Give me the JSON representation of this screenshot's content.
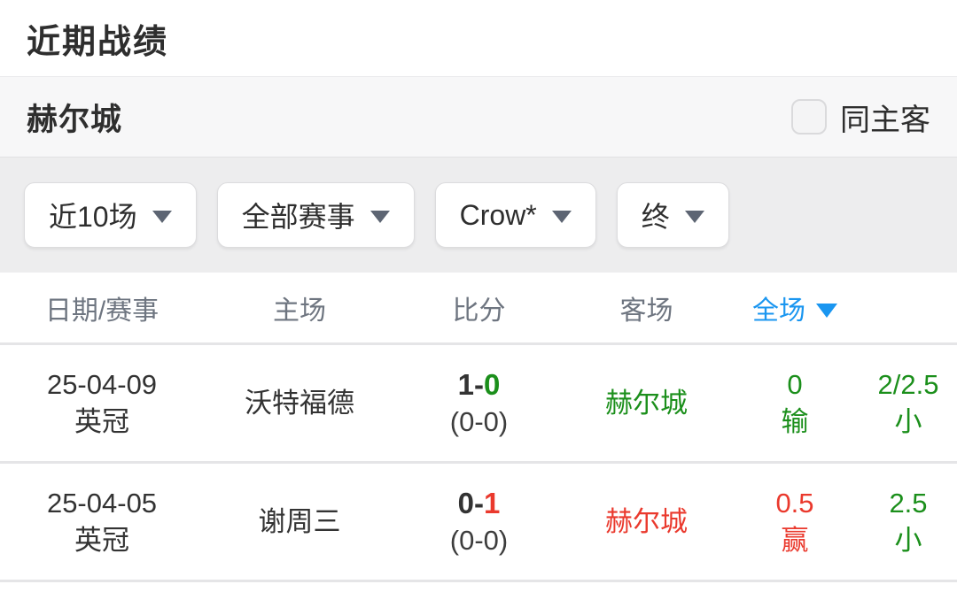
{
  "page": {
    "title": "近期战绩"
  },
  "team_bar": {
    "team_name": "赫尔城",
    "checkbox_label": "同主客",
    "checkbox_checked": false
  },
  "filters": [
    {
      "label": "近10场"
    },
    {
      "label": "全部赛事"
    },
    {
      "label": "Crow*"
    },
    {
      "label": "终"
    }
  ],
  "table": {
    "headers": [
      {
        "label": "日期/赛事"
      },
      {
        "label": "主场"
      },
      {
        "label": "比分"
      },
      {
        "label": "客场"
      },
      {
        "label": "全场",
        "sort": "desc"
      }
    ],
    "rows": [
      {
        "date": "25-04-09",
        "competition": "英冠",
        "home": "沃特福德",
        "home_color": "dark",
        "score": {
          "home": "1",
          "sep": "-",
          "away": "0",
          "home_color": "dark",
          "away_color": "green"
        },
        "half_score": "(0-0)",
        "away": "赫尔城",
        "away_color": "green",
        "handicap": {
          "value": "0",
          "result": "输",
          "color": "green"
        },
        "over_under": {
          "value": "2/2.5",
          "result": "小",
          "color": "green"
        }
      },
      {
        "date": "25-04-05",
        "competition": "英冠",
        "home": "谢周三",
        "home_color": "dark",
        "score": {
          "home": "0",
          "sep": "-",
          "away": "1",
          "home_color": "dark",
          "away_color": "red"
        },
        "half_score": "(0-0)",
        "away": "赫尔城",
        "away_color": "red",
        "handicap": {
          "value": "0.5",
          "result": "赢",
          "color": "red"
        },
        "over_under": {
          "value": "2.5",
          "result": "小",
          "color": "green"
        }
      }
    ]
  },
  "colors": {
    "green": "#1b8f1b",
    "red": "#ea392d",
    "blue": "#1a96f0"
  }
}
